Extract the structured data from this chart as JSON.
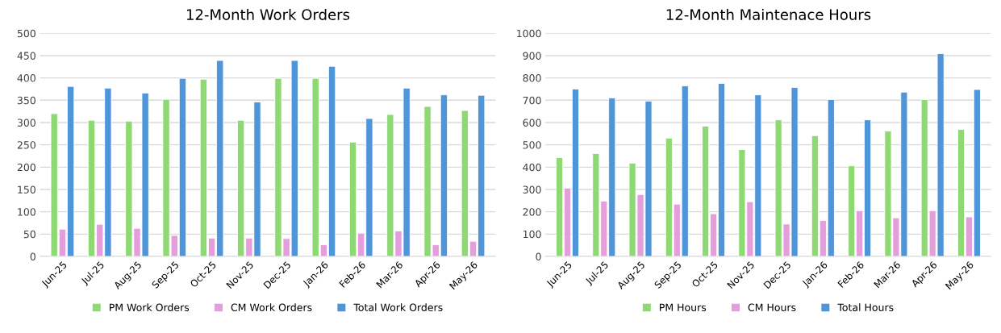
{
  "chart_data": [
    {
      "type": "bar",
      "title": "12-Month Work Orders",
      "categories": [
        "Jun-25",
        "Jul-25",
        "Aug-25",
        "Sep-25",
        "Oct-25",
        "Nov-25",
        "Dec-25",
        "Jan-26",
        "Feb-26",
        "Mar-26",
        "Apr-26",
        "May-26"
      ],
      "series": [
        {
          "name": "PM Work Orders",
          "color": "#8fd974",
          "values": [
            320,
            305,
            303,
            352,
            397,
            305,
            399,
            399,
            256,
            318,
            336,
            327
          ]
        },
        {
          "name": "CM Work Orders",
          "color": "#e59edc",
          "values": [
            61,
            72,
            63,
            47,
            41,
            41,
            40,
            26,
            52,
            57,
            26,
            34
          ]
        },
        {
          "name": "Total Work Orders",
          "color": "#4f95d9",
          "values": [
            381,
            377,
            366,
            399,
            439,
            346,
            439,
            426,
            309,
            377,
            362,
            361
          ]
        }
      ],
      "ylim": [
        0,
        500
      ],
      "yticks": [
        0,
        50,
        100,
        150,
        200,
        250,
        300,
        350,
        400,
        450,
        500
      ],
      "grid": "y",
      "legend": "bottom"
    },
    {
      "type": "bar",
      "title": "12-Month Maintenace Hours",
      "categories": [
        "Jun-25",
        "Jul-25",
        "Aug-25",
        "Sep-25",
        "Oct-25",
        "Nov-25",
        "Dec-25",
        "Jan-26",
        "Feb-26",
        "Mar-26",
        "Apr-26",
        "May-26"
      ],
      "series": [
        {
          "name": "PM Hours",
          "color": "#8fd974",
          "values": [
            443,
            461,
            418,
            530,
            584,
            479,
            612,
            541,
            406,
            562,
            703,
            569
          ]
        },
        {
          "name": "CM Hours",
          "color": "#e59edc",
          "values": [
            306,
            248,
            277,
            234,
            191,
            245,
            145,
            161,
            205,
            173,
            205,
            177
          ]
        },
        {
          "name": "Total Hours",
          "color": "#4f95d9",
          "values": [
            750,
            710,
            696,
            764,
            775,
            724,
            757,
            703,
            612,
            736,
            909,
            748
          ]
        }
      ],
      "ylim": [
        0,
        1000
      ],
      "yticks": [
        0,
        100,
        200,
        300,
        400,
        500,
        600,
        700,
        800,
        900,
        1000
      ],
      "grid": "y",
      "legend": "bottom"
    }
  ]
}
